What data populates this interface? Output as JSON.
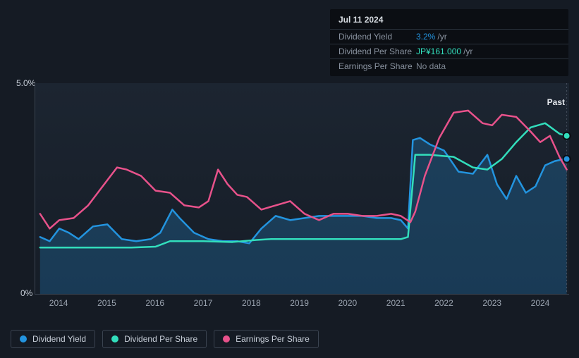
{
  "tooltip": {
    "date": "Jul 11 2024",
    "rows": [
      {
        "label": "Dividend Yield",
        "value": "3.2%",
        "suffix": "/yr",
        "value_color": "#2394df"
      },
      {
        "label": "Dividend Per Share",
        "value": "JP¥161.000",
        "suffix": "/yr",
        "value_color": "#32debc"
      },
      {
        "label": "Earnings Per Share",
        "value": "No data",
        "suffix": "",
        "value_color": "#7f8894"
      }
    ]
  },
  "chart": {
    "type": "line",
    "badge": "Past",
    "y_axis": {
      "min": 0,
      "max": 5,
      "ticks": [
        {
          "v": 5,
          "label": "5.0%"
        },
        {
          "v": 0,
          "label": "0%"
        }
      ],
      "label_color": "#c7ced8",
      "label_fontsize": 12
    },
    "x_axis": {
      "min": 2013.5,
      "max": 2024.6,
      "ticks": [
        2014,
        2015,
        2016,
        2017,
        2018,
        2019,
        2020,
        2021,
        2022,
        2023,
        2024
      ],
      "label_color": "#9aa3af",
      "label_fontsize": 12
    },
    "background_gradient": [
      "#1c2531",
      "#161d27"
    ],
    "axis_line_color": "#3a4350",
    "vline_x": 2024.55,
    "series": [
      {
        "name": "Dividend Yield",
        "color": "#2394df",
        "fill": true,
        "fill_color": "#2394df",
        "fill_opacity": 0.25,
        "line_width": 2.5,
        "data": [
          [
            2013.6,
            1.35
          ],
          [
            2013.8,
            1.25
          ],
          [
            2014.0,
            1.55
          ],
          [
            2014.2,
            1.45
          ],
          [
            2014.4,
            1.3
          ],
          [
            2014.7,
            1.6
          ],
          [
            2015.0,
            1.65
          ],
          [
            2015.3,
            1.3
          ],
          [
            2015.6,
            1.25
          ],
          [
            2015.9,
            1.3
          ],
          [
            2016.1,
            1.45
          ],
          [
            2016.35,
            2.0
          ],
          [
            2016.5,
            1.8
          ],
          [
            2016.8,
            1.45
          ],
          [
            2017.1,
            1.3
          ],
          [
            2017.4,
            1.25
          ],
          [
            2017.7,
            1.25
          ],
          [
            2017.95,
            1.2
          ],
          [
            2018.2,
            1.55
          ],
          [
            2018.5,
            1.85
          ],
          [
            2018.8,
            1.75
          ],
          [
            2019.1,
            1.8
          ],
          [
            2019.4,
            1.85
          ],
          [
            2019.7,
            1.85
          ],
          [
            2020.0,
            1.85
          ],
          [
            2020.3,
            1.85
          ],
          [
            2020.6,
            1.8
          ],
          [
            2020.9,
            1.8
          ],
          [
            2021.1,
            1.75
          ],
          [
            2021.25,
            1.55
          ],
          [
            2021.35,
            3.65
          ],
          [
            2021.5,
            3.7
          ],
          [
            2021.7,
            3.55
          ],
          [
            2022.0,
            3.4
          ],
          [
            2022.3,
            2.9
          ],
          [
            2022.6,
            2.85
          ],
          [
            2022.9,
            3.3
          ],
          [
            2023.1,
            2.6
          ],
          [
            2023.3,
            2.25
          ],
          [
            2023.5,
            2.8
          ],
          [
            2023.7,
            2.4
          ],
          [
            2023.9,
            2.55
          ],
          [
            2024.1,
            3.05
          ],
          [
            2024.3,
            3.15
          ],
          [
            2024.5,
            3.2
          ],
          [
            2024.55,
            3.2
          ]
        ]
      },
      {
        "name": "Dividend Per Share",
        "color": "#32debc",
        "fill": false,
        "line_width": 2.5,
        "data": [
          [
            2013.6,
            1.1
          ],
          [
            2014.5,
            1.1
          ],
          [
            2015.5,
            1.1
          ],
          [
            2016.0,
            1.12
          ],
          [
            2016.3,
            1.25
          ],
          [
            2017.0,
            1.25
          ],
          [
            2017.6,
            1.23
          ],
          [
            2018.1,
            1.28
          ],
          [
            2018.4,
            1.3
          ],
          [
            2019.0,
            1.3
          ],
          [
            2020.0,
            1.3
          ],
          [
            2020.7,
            1.3
          ],
          [
            2021.1,
            1.3
          ],
          [
            2021.25,
            1.35
          ],
          [
            2021.4,
            3.3
          ],
          [
            2021.7,
            3.3
          ],
          [
            2022.2,
            3.25
          ],
          [
            2022.6,
            3.0
          ],
          [
            2022.9,
            2.95
          ],
          [
            2023.2,
            3.2
          ],
          [
            2023.5,
            3.6
          ],
          [
            2023.8,
            3.95
          ],
          [
            2024.1,
            4.05
          ],
          [
            2024.4,
            3.8
          ],
          [
            2024.55,
            3.75
          ]
        ]
      },
      {
        "name": "Earnings Per Share",
        "color": "#e8528b",
        "fill": false,
        "line_width": 2.5,
        "data": [
          [
            2013.6,
            1.9
          ],
          [
            2013.8,
            1.55
          ],
          [
            2014.0,
            1.75
          ],
          [
            2014.3,
            1.8
          ],
          [
            2014.6,
            2.1
          ],
          [
            2014.9,
            2.55
          ],
          [
            2015.2,
            3.0
          ],
          [
            2015.4,
            2.95
          ],
          [
            2015.7,
            2.8
          ],
          [
            2016.0,
            2.45
          ],
          [
            2016.3,
            2.4
          ],
          [
            2016.6,
            2.1
          ],
          [
            2016.9,
            2.05
          ],
          [
            2017.1,
            2.2
          ],
          [
            2017.3,
            2.95
          ],
          [
            2017.5,
            2.6
          ],
          [
            2017.7,
            2.35
          ],
          [
            2017.9,
            2.3
          ],
          [
            2018.2,
            2.0
          ],
          [
            2018.5,
            2.1
          ],
          [
            2018.8,
            2.2
          ],
          [
            2019.1,
            1.9
          ],
          [
            2019.4,
            1.75
          ],
          [
            2019.7,
            1.9
          ],
          [
            2020.0,
            1.9
          ],
          [
            2020.3,
            1.85
          ],
          [
            2020.6,
            1.85
          ],
          [
            2020.9,
            1.9
          ],
          [
            2021.1,
            1.85
          ],
          [
            2021.3,
            1.7
          ],
          [
            2021.4,
            1.95
          ],
          [
            2021.6,
            2.8
          ],
          [
            2021.9,
            3.7
          ],
          [
            2022.2,
            4.3
          ],
          [
            2022.5,
            4.35
          ],
          [
            2022.8,
            4.05
          ],
          [
            2023.0,
            4.0
          ],
          [
            2023.2,
            4.25
          ],
          [
            2023.5,
            4.2
          ],
          [
            2023.8,
            3.85
          ],
          [
            2024.0,
            3.6
          ],
          [
            2024.2,
            3.75
          ],
          [
            2024.4,
            3.25
          ],
          [
            2024.55,
            2.95
          ]
        ]
      }
    ]
  },
  "legend": {
    "items": [
      {
        "label": "Dividend Yield",
        "color": "#2394df"
      },
      {
        "label": "Dividend Per Share",
        "color": "#32debc"
      },
      {
        "label": "Earnings Per Share",
        "color": "#e8528b"
      }
    ],
    "border_color": "#3a4350",
    "text_color": "#c7ced8",
    "fontsize": 12
  }
}
